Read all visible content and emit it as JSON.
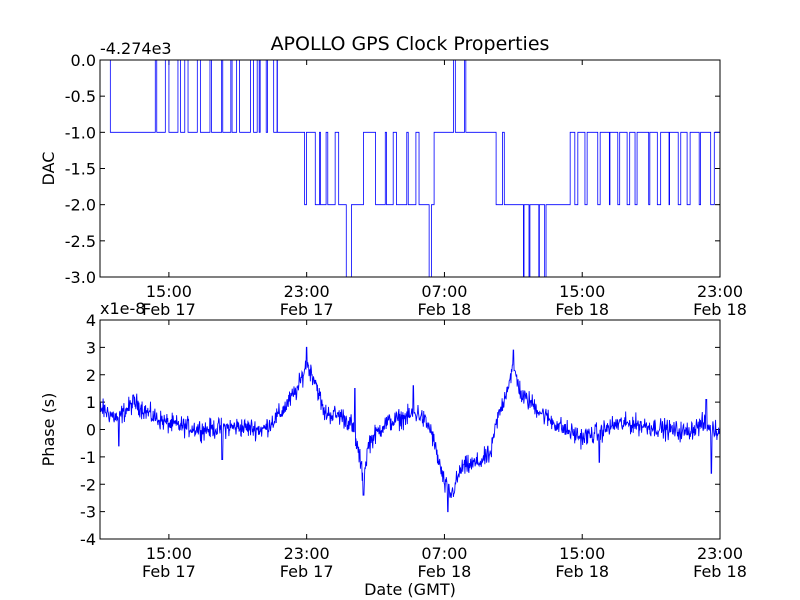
{
  "figure": {
    "title": "APOLLO GPS Clock Properties"
  },
  "colors": {
    "series": "#0000ff",
    "axes": "#000000",
    "background": "#ffffff"
  },
  "chart_data": [
    {
      "type": "line",
      "title": "APOLLO GPS Clock Properties",
      "xlabel": "",
      "ylabel": "DAC",
      "y_offset_label": "-4.274e3",
      "xlim_hours": [
        0,
        36
      ],
      "ylim": [
        -3.0,
        0.0
      ],
      "x_ticks": [
        {
          "hour": 4,
          "label": "15:00",
          "sublabel": "Feb 17"
        },
        {
          "hour": 12,
          "label": "23:00",
          "sublabel": "Feb 17"
        },
        {
          "hour": 20,
          "label": "07:00",
          "sublabel": "Feb 18"
        },
        {
          "hour": 28,
          "label": "15:00",
          "sublabel": "Feb 18"
        },
        {
          "hour": 36,
          "label": "23:00",
          "sublabel": "Feb 18"
        }
      ],
      "y_ticks": [
        {
          "value": 0.0,
          "label": "0.0"
        },
        {
          "value": -0.5,
          "label": "-0.5"
        },
        {
          "value": -1.0,
          "label": "-1.0"
        },
        {
          "value": -1.5,
          "label": "-1.5"
        },
        {
          "value": -2.0,
          "label": "-2.0"
        },
        {
          "value": -2.5,
          "label": "-2.5"
        },
        {
          "value": -3.0,
          "label": "-3.0"
        }
      ],
      "grid": false,
      "series": [
        {
          "segments": [
            {
              "t": [
                0.0,
                0.6
              ],
              "base": 0,
              "toggle": null
            },
            {
              "t": [
                0.6,
                2.7
              ],
              "base": -1,
              "toggle": null
            },
            {
              "t": [
                2.7,
                9.3
              ],
              "base": -1,
              "toggle": 0
            },
            {
              "t": [
                9.3,
                10.3
              ],
              "base": 0,
              "toggle": -1
            },
            {
              "t": [
                10.3,
                11.5
              ],
              "base": -1,
              "toggle": null
            },
            {
              "t": [
                11.5,
                12.5
              ],
              "base": -1,
              "toggle": -2
            },
            {
              "t": [
                12.5,
                14.1
              ],
              "base": -2,
              "toggle": -1
            },
            {
              "t": [
                14.1,
                14.3
              ],
              "base": -2,
              "toggle": null
            },
            {
              "t": [
                14.3,
                14.6
              ],
              "base": -3,
              "toggle": null
            },
            {
              "t": [
                14.6,
                15.3
              ],
              "base": -2,
              "toggle": null
            },
            {
              "t": [
                15.3,
                16.0
              ],
              "base": -1,
              "toggle": null
            },
            {
              "t": [
                16.0,
                18.9
              ],
              "base": -2,
              "toggle": -1
            },
            {
              "t": [
                18.9,
                19.4
              ],
              "base": -2,
              "toggle": -3
            },
            {
              "t": [
                19.4,
                20.0
              ],
              "base": -1,
              "toggle": null
            },
            {
              "t": [
                20.0,
                21.3
              ],
              "base": -1,
              "toggle": 0
            },
            {
              "t": [
                21.3,
                23.0
              ],
              "base": -1,
              "toggle": null
            },
            {
              "t": [
                23.0,
                23.8
              ],
              "base": -2,
              "toggle": -1
            },
            {
              "t": [
                23.8,
                24.2
              ],
              "base": -2,
              "toggle": null
            },
            {
              "t": [
                24.2,
                26.1
              ],
              "base": -2,
              "toggle": -3
            },
            {
              "t": [
                26.1,
                27.3
              ],
              "base": -2,
              "toggle": null
            },
            {
              "t": [
                27.3,
                36.0
              ],
              "base": -1,
              "toggle": -2
            }
          ]
        }
      ]
    },
    {
      "type": "line",
      "xlabel": "Date (GMT)",
      "ylabel": "Phase (s)",
      "y_offset_label": "x1e-8",
      "xlim_hours": [
        0,
        36
      ],
      "ylim": [
        -4,
        4
      ],
      "x_ticks": [
        {
          "hour": 4,
          "label": "15:00",
          "sublabel": "Feb 17"
        },
        {
          "hour": 12,
          "label": "23:00",
          "sublabel": "Feb 17"
        },
        {
          "hour": 20,
          "label": "07:00",
          "sublabel": "Feb 18"
        },
        {
          "hour": 28,
          "label": "15:00",
          "sublabel": "Feb 18"
        },
        {
          "hour": 36,
          "label": "23:00",
          "sublabel": "Feb 18"
        }
      ],
      "y_ticks": [
        {
          "value": 4,
          "label": "4"
        },
        {
          "value": 3,
          "label": "3"
        },
        {
          "value": 2,
          "label": "2"
        },
        {
          "value": 1,
          "label": "1"
        },
        {
          "value": 0,
          "label": "0"
        },
        {
          "value": -1,
          "label": "-1"
        },
        {
          "value": -2,
          "label": "-2"
        },
        {
          "value": -3,
          "label": "-3"
        },
        {
          "value": -4,
          "label": "-4"
        }
      ],
      "grid": false,
      "series": [
        {
          "trend": [
            [
              0.0,
              0.8
            ],
            [
              1.0,
              0.4
            ],
            [
              2.0,
              1.0
            ],
            [
              3.0,
              0.5
            ],
            [
              4.0,
              0.2
            ],
            [
              6.0,
              0.0
            ],
            [
              8.0,
              0.1
            ],
            [
              9.5,
              0.0
            ],
            [
              10.5,
              0.6
            ],
            [
              11.5,
              1.5
            ],
            [
              12.0,
              2.4
            ],
            [
              12.5,
              1.8
            ],
            [
              13.0,
              0.6
            ],
            [
              14.0,
              0.5
            ],
            [
              14.6,
              0.2
            ],
            [
              15.0,
              -0.8
            ],
            [
              15.3,
              -1.8
            ],
            [
              15.6,
              -0.5
            ],
            [
              16.5,
              0.2
            ],
            [
              17.5,
              0.4
            ],
            [
              18.5,
              0.6
            ],
            [
              19.2,
              0.0
            ],
            [
              19.6,
              -1.0
            ],
            [
              20.0,
              -2.0
            ],
            [
              20.4,
              -2.4
            ],
            [
              21.0,
              -1.4
            ],
            [
              22.0,
              -1.2
            ],
            [
              22.7,
              -0.9
            ],
            [
              23.0,
              0.2
            ],
            [
              23.5,
              1.2
            ],
            [
              24.0,
              2.3
            ],
            [
              24.5,
              1.2
            ],
            [
              25.0,
              1.0
            ],
            [
              26.0,
              0.4
            ],
            [
              27.0,
              0.0
            ],
            [
              28.0,
              -0.3
            ],
            [
              29.0,
              -0.1
            ],
            [
              30.0,
              0.2
            ],
            [
              31.0,
              0.2
            ],
            [
              32.0,
              0.1
            ],
            [
              33.0,
              0.0
            ],
            [
              34.0,
              -0.1
            ],
            [
              35.0,
              0.2
            ],
            [
              36.0,
              -0.1
            ]
          ],
          "noise_amplitude": 0.3,
          "spikes": [
            [
              1.1,
              -0.6
            ],
            [
              7.1,
              -1.1
            ],
            [
              12.0,
              3.0
            ],
            [
              14.8,
              1.5
            ],
            [
              15.3,
              -2.4
            ],
            [
              18.2,
              1.6
            ],
            [
              20.2,
              -3.0
            ],
            [
              24.0,
              2.9
            ],
            [
              29.0,
              -1.2
            ],
            [
              35.2,
              1.1
            ],
            [
              35.5,
              -1.6
            ]
          ]
        }
      ]
    }
  ]
}
